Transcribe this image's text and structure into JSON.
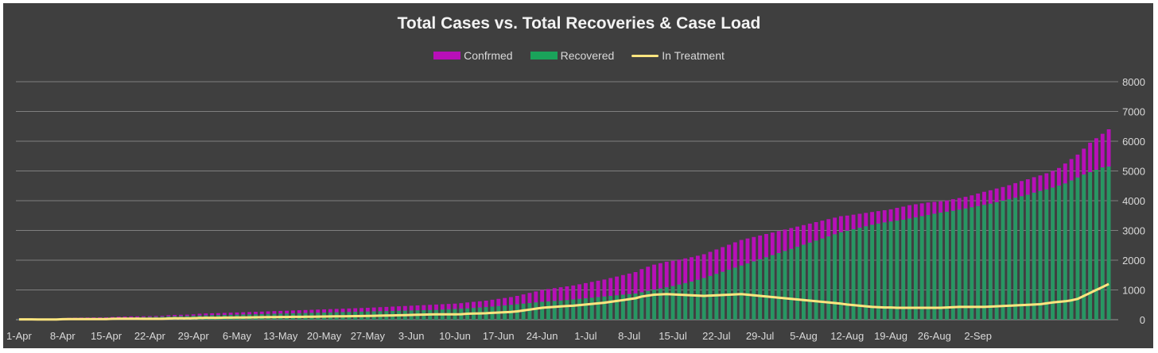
{
  "chart_data": {
    "type": "bar",
    "title": "Total Cases vs. Total Recoveries & Case Load",
    "xlabel": "",
    "ylabel": "",
    "ylim": [
      0,
      8000
    ],
    "yticks": [
      "0",
      "1000",
      "2000",
      "3000",
      "4000",
      "5000",
      "6000",
      "7000",
      "8000"
    ],
    "grid": true,
    "legend_position": "top",
    "colors": {
      "Confrmed": "#b80fb8",
      "Recovered": "#1aa35a",
      "In Treatment": "#ffe57f",
      "background": "#3f3f3f",
      "grid": "#7f7f7f",
      "text": "#d9d9d9"
    },
    "x_tick_labels": [
      "1-Apr",
      "8-Apr",
      "15-Apr",
      "22-Apr",
      "29-Apr",
      "6-May",
      "13-May",
      "20-May",
      "27-May",
      "3-Jun",
      "10-Jun",
      "17-Jun",
      "24-Jun",
      "1-Jul",
      "8-Jul",
      "15-Jul",
      "22-Jul",
      "29-Jul",
      "5-Aug",
      "12-Aug",
      "19-Aug",
      "26-Aug",
      "2-Sep"
    ],
    "x_start": "1-Apr",
    "x_end": "8-Sep",
    "series": [
      {
        "name": "Confrmed",
        "kind": "bar",
        "values": [
          30,
          30,
          30,
          30,
          32,
          34,
          36,
          50,
          60,
          65,
          70,
          72,
          75,
          78,
          80,
          90,
          100,
          105,
          110,
          112,
          115,
          120,
          125,
          130,
          150,
          160,
          165,
          170,
          180,
          200,
          210,
          215,
          220,
          228,
          235,
          242,
          250,
          258,
          265,
          272,
          280,
          288,
          295,
          302,
          310,
          317,
          325,
          332,
          340,
          347,
          355,
          362,
          370,
          377,
          385,
          392,
          400,
          410,
          420,
          430,
          440,
          450,
          460,
          470,
          480,
          490,
          500,
          510,
          520,
          530,
          540,
          555,
          580,
          600,
          620,
          640,
          670,
          700,
          730,
          760,
          800,
          850,
          900,
          950,
          1000,
          1030,
          1060,
          1090,
          1120,
          1150,
          1190,
          1230,
          1270,
          1310,
          1350,
          1400,
          1450,
          1500,
          1550,
          1600,
          1700,
          1780,
          1850,
          1900,
          1950,
          1980,
          2020,
          2060,
          2100,
          2150,
          2200,
          2280,
          2360,
          2440,
          2520,
          2600,
          2680,
          2730,
          2780,
          2830,
          2880,
          2930,
          2980,
          3030,
          3080,
          3130,
          3180,
          3230,
          3280,
          3330,
          3380,
          3430,
          3480,
          3500,
          3530,
          3560,
          3590,
          3620,
          3650,
          3680,
          3710,
          3760,
          3800,
          3850,
          3880,
          3910,
          3940,
          3960,
          3980,
          4010,
          4050,
          4090,
          4130,
          4180,
          4240,
          4300,
          4350,
          4410,
          4460,
          4520,
          4590,
          4660,
          4720,
          4790,
          4850,
          4920,
          5000,
          5100,
          5250,
          5400,
          5550,
          5750,
          5950,
          6100,
          6250,
          6400
        ]
      },
      {
        "name": "Recovered",
        "kind": "bar",
        "values": [
          20,
          20,
          20,
          22,
          24,
          26,
          28,
          35,
          40,
          45,
          50,
          52,
          54,
          56,
          58,
          60,
          65,
          70,
          75,
          80,
          85,
          90,
          95,
          100,
          110,
          115,
          120,
          125,
          130,
          140,
          145,
          150,
          155,
          160,
          165,
          170,
          175,
          180,
          185,
          190,
          195,
          200,
          205,
          210,
          215,
          220,
          225,
          230,
          235,
          240,
          245,
          250,
          255,
          260,
          265,
          270,
          275,
          280,
          285,
          290,
          295,
          300,
          305,
          310,
          315,
          320,
          325,
          330,
          340,
          350,
          360,
          370,
          380,
          395,
          410,
          425,
          440,
          460,
          480,
          500,
          520,
          540,
          560,
          580,
          600,
          615,
          630,
          645,
          660,
          680,
          700,
          720,
          740,
          760,
          780,
          800,
          820,
          840,
          860,
          880,
          920,
          970,
          1010,
          1050,
          1090,
          1130,
          1180,
          1230,
          1280,
          1340,
          1400,
          1470,
          1540,
          1610,
          1680,
          1750,
          1820,
          1890,
          1960,
          2030,
          2100,
          2170,
          2240,
          2310,
          2380,
          2450,
          2520,
          2590,
          2660,
          2730,
          2800,
          2870,
          2940,
          2990,
          3040,
          3090,
          3140,
          3190,
          3230,
          3270,
          3300,
          3330,
          3360,
          3400,
          3440,
          3480,
          3520,
          3560,
          3600,
          3630,
          3660,
          3700,
          3740,
          3780,
          3820,
          3860,
          3900,
          3950,
          4000,
          4050,
          4100,
          4150,
          4200,
          4270,
          4330,
          4380,
          4440,
          4510,
          4580,
          4680,
          4780,
          4880,
          4960,
          5040,
          5120,
          5150
        ]
      },
      {
        "name": "In Treatment",
        "kind": "line",
        "values": [
          10,
          10,
          10,
          8,
          8,
          8,
          8,
          15,
          20,
          20,
          20,
          20,
          21,
          22,
          22,
          30,
          35,
          35,
          35,
          32,
          30,
          30,
          30,
          30,
          40,
          45,
          45,
          45,
          50,
          60,
          65,
          65,
          65,
          68,
          70,
          72,
          75,
          78,
          80,
          82,
          85,
          88,
          90,
          92,
          95,
          97,
          100,
          102,
          105,
          107,
          110,
          112,
          115,
          117,
          120,
          122,
          125,
          130,
          135,
          140,
          145,
          150,
          155,
          160,
          165,
          170,
          175,
          180,
          180,
          180,
          180,
          185,
          200,
          205,
          210,
          215,
          230,
          240,
          250,
          260,
          280,
          310,
          340,
          370,
          400,
          415,
          430,
          445,
          460,
          470,
          490,
          510,
          530,
          550,
          570,
          600,
          630,
          660,
          690,
          720,
          780,
          810,
          840,
          850,
          860,
          850,
          840,
          830,
          820,
          810,
          800,
          810,
          820,
          830,
          840,
          850,
          860,
          840,
          820,
          800,
          780,
          760,
          740,
          720,
          700,
          680,
          660,
          640,
          620,
          600,
          580,
          560,
          540,
          510,
          490,
          470,
          450,
          430,
          420,
          410,
          410,
          400,
          400,
          400,
          400,
          400,
          400,
          400,
          400,
          410,
          420,
          430,
          430,
          430,
          430,
          430,
          440,
          450,
          460,
          470,
          480,
          490,
          500,
          510,
          520,
          550,
          580,
          600,
          620,
          650,
          700,
          800,
          900,
          1000,
          1100,
          1200
        ]
      }
    ]
  }
}
